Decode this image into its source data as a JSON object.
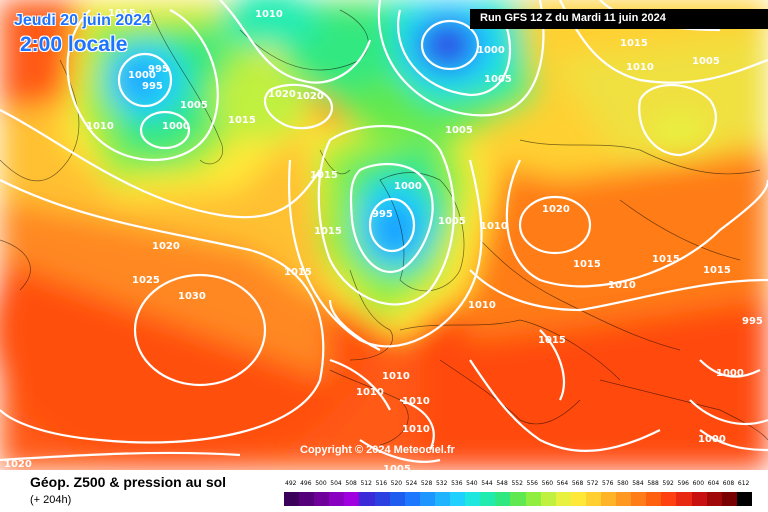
{
  "header": {
    "date": "Jeudi 20 juin 2024",
    "time": "2:00 locale",
    "run": "Run GFS 12 Z du Mardi 11 juin 2024"
  },
  "copyright": "Copyright © 2024 Meteociel.fr",
  "footer": {
    "title": "Géop. Z500 & pression au sol",
    "subtitle": "(+ 204h)"
  },
  "legend": {
    "labels": [
      "492",
      "496",
      "500",
      "504",
      "508",
      "512",
      "516",
      "520",
      "524",
      "528",
      "532",
      "536",
      "540",
      "544",
      "548",
      "552",
      "556",
      "560",
      "564",
      "568",
      "572",
      "576",
      "580",
      "584",
      "588",
      "592",
      "596",
      "600",
      "604",
      "608",
      "612"
    ],
    "colors": [
      "#3a005a",
      "#55007a",
      "#70009a",
      "#8a00c0",
      "#a000e0",
      "#3a2ad8",
      "#2a40e0",
      "#1e5cf0",
      "#1e78ff",
      "#1e96ff",
      "#20b4ff",
      "#20d0ff",
      "#20e6e0",
      "#20ecb0",
      "#30e880",
      "#60e850",
      "#90ee40",
      "#c0f040",
      "#e8f040",
      "#ffe838",
      "#ffd030",
      "#ffb428",
      "#ff9820",
      "#ff7c18",
      "#ff6010",
      "#ff4010",
      "#e82810",
      "#c81010",
      "#a00808",
      "#780000",
      "#000000"
    ]
  },
  "isobars": [
    {
      "value": "1015",
      "area": "greenland-top"
    },
    {
      "value": "1010",
      "area": "greenland-north"
    },
    {
      "value": "995",
      "area": "baffin-low"
    },
    {
      "value": "1000",
      "area": "baffin-low"
    },
    {
      "value": "995",
      "area": "baffin-low"
    },
    {
      "value": "1005",
      "area": "baffin"
    },
    {
      "value": "1010",
      "area": "labrador"
    },
    {
      "value": "1000",
      "area": "labrador-low"
    },
    {
      "value": "1015",
      "area": "greenland"
    },
    {
      "value": "1020",
      "area": "greenland-high"
    },
    {
      "value": "1020",
      "area": "greenland-high"
    },
    {
      "value": "1000",
      "area": "svalbard-low"
    },
    {
      "value": "1005",
      "area": "svalbard-low"
    },
    {
      "value": "1005",
      "area": "north-norway"
    },
    {
      "value": "1015",
      "area": "north-siberia"
    },
    {
      "value": "1010",
      "area": "north-siberia"
    },
    {
      "value": "1005",
      "area": "far-north-east"
    },
    {
      "value": "1015",
      "area": "iceland"
    },
    {
      "value": "1000",
      "area": "norway-low"
    },
    {
      "value": "995",
      "area": "norway-low"
    },
    {
      "value": "1005",
      "area": "scandinavia"
    },
    {
      "value": "1010",
      "area": "baltic"
    },
    {
      "value": "1015",
      "area": "north-atlantic"
    },
    {
      "value": "1015",
      "area": "west-ireland"
    },
    {
      "value": "1020",
      "area": "russia-high"
    },
    {
      "value": "1015",
      "area": "russia"
    },
    {
      "value": "1015",
      "area": "urals"
    },
    {
      "value": "1015",
      "area": "urals-east"
    },
    {
      "value": "1010",
      "area": "ukraine"
    },
    {
      "value": "1010",
      "area": "central-europe"
    },
    {
      "value": "1015",
      "area": "balkans"
    },
    {
      "value": "1020",
      "area": "mid-atlantic"
    },
    {
      "value": "1025",
      "area": "azores"
    },
    {
      "value": "1030",
      "area": "azores-high"
    },
    {
      "value": "1010",
      "area": "spain-north"
    },
    {
      "value": "1010",
      "area": "iberia"
    },
    {
      "value": "1010",
      "area": "iberia-south"
    },
    {
      "value": "1010",
      "area": "north-africa"
    },
    {
      "value": "995",
      "area": "kazakhstan"
    },
    {
      "value": "1000",
      "area": "middle-east"
    },
    {
      "value": "1000",
      "area": "middle-east-south"
    },
    {
      "value": "1005",
      "area": "sahara"
    },
    {
      "value": "1020",
      "area": "atlantic-south"
    }
  ]
}
